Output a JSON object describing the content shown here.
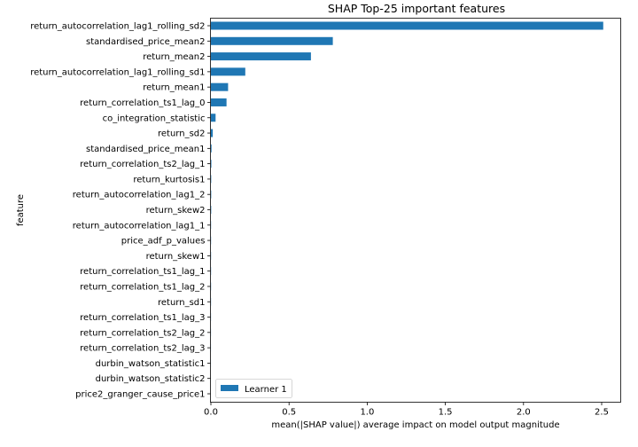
{
  "chart_data": {
    "type": "bar",
    "orientation": "horizontal",
    "title": "SHAP Top-25 important features",
    "xlabel": "mean(|SHAP value|) average impact on model output magnitude",
    "ylabel": "feature",
    "xlim": [
      0,
      2.6
    ],
    "xticks": [
      "0.0",
      "0.5",
      "1.0",
      "1.5",
      "2.0",
      "2.5"
    ],
    "xtick_values": [
      0,
      0.5,
      1.0,
      1.5,
      2.0,
      2.5
    ],
    "grid": false,
    "legend": {
      "position": "lower-left",
      "entries": [
        "Learner 1"
      ]
    },
    "bar_color": "#1f77b4",
    "categories": [
      "return_autocorrelation_lag1_rolling_sd2",
      "standardised_price_mean2",
      "return_mean2",
      "return_autocorrelation_lag1_rolling_sd1",
      "return_mean1",
      "return_correlation_ts1_lag_0",
      "co_integration_statistic",
      "return_sd2",
      "standardised_price_mean1",
      "return_correlation_ts2_lag_1",
      "return_kurtosis1",
      "return_autocorrelation_lag1_2",
      "return_skew2",
      "return_autocorrelation_lag1_1",
      "price_adf_p_values",
      "return_skew1",
      "return_correlation_ts1_lag_1",
      "return_correlation_ts1_lag_2",
      "return_sd1",
      "return_correlation_ts1_lag_3",
      "return_correlation_ts2_lag_2",
      "return_correlation_ts2_lag_3",
      "durbin_watson_statistic1",
      "durbin_watson_statistic2",
      "price2_granger_cause_price1"
    ],
    "series": [
      {
        "name": "Learner 1",
        "values": [
          2.51,
          0.78,
          0.64,
          0.22,
          0.11,
          0.1,
          0.03,
          0.012,
          0.004,
          0.003,
          0.002,
          0.002,
          0.002,
          0.001,
          0.001,
          0.001,
          0.001,
          0.001,
          0.0008,
          0.0006,
          0.0005,
          0.0004,
          0.0003,
          0.0002,
          0.0001
        ]
      }
    ]
  }
}
